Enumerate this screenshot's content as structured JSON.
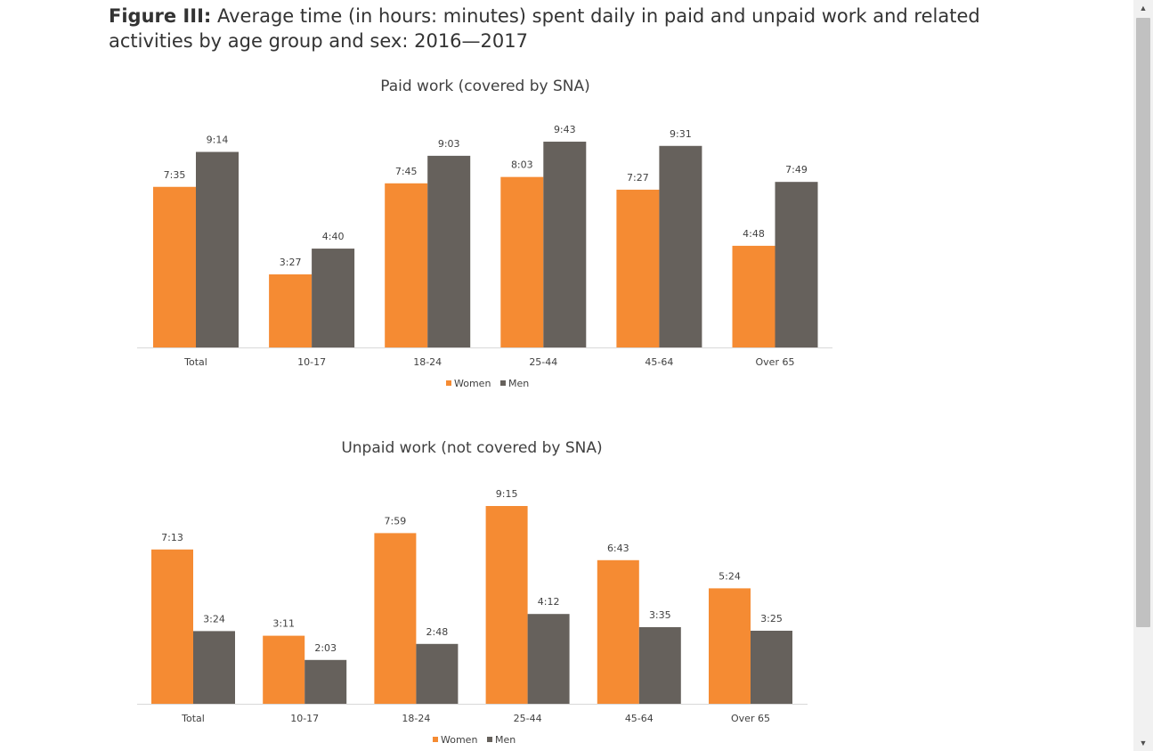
{
  "caption": {
    "label": "Figure III:",
    "text": " Average time (in hours: minutes) spent daily in paid and unpaid work and related activities by age group and sex: 2016—2017"
  },
  "chart_data": [
    {
      "type": "bar",
      "title": "Paid work (covered by SNA)",
      "categories": [
        "Total",
        "10-17",
        "18-24",
        "25-44",
        "45-64",
        "Over 65"
      ],
      "series": [
        {
          "name": "Women",
          "color": "#f58b33",
          "values": [
            7.583,
            3.45,
            7.75,
            8.05,
            7.45,
            4.8
          ],
          "labels": [
            "7:35",
            "3:27",
            "7:45",
            "8:03",
            "7:27",
            "4:48"
          ]
        },
        {
          "name": "Men",
          "color": "#66615c",
          "values": [
            9.233,
            4.667,
            9.05,
            9.717,
            9.517,
            7.817
          ],
          "labels": [
            "9:14",
            "4:40",
            "9:03",
            "9:43",
            "9:31",
            "7:49"
          ]
        }
      ],
      "ylim": [
        0,
        10
      ],
      "legend": "bottom"
    },
    {
      "type": "bar",
      "title": "Unpaid work (not covered by SNA)",
      "categories": [
        "Total",
        "10-17",
        "18-24",
        "25-44",
        "45-64",
        "Over 65"
      ],
      "series": [
        {
          "name": "Women",
          "color": "#f58b33",
          "values": [
            7.217,
            3.183,
            7.983,
            9.25,
            6.717,
            5.4
          ],
          "labels": [
            "7:13",
            "3:11",
            "7:59",
            "9:15",
            "6:43",
            "5:24"
          ]
        },
        {
          "name": "Men",
          "color": "#66615c",
          "values": [
            3.4,
            2.05,
            2.8,
            4.2,
            3.583,
            3.417
          ],
          "labels": [
            "3:24",
            "2:03",
            "2:48",
            "4:12",
            "3:35",
            "3:25"
          ]
        }
      ],
      "ylim": [
        0,
        10
      ],
      "legend": "bottom"
    }
  ],
  "scrollbar": {
    "up_icon": "triangle-up-icon",
    "down_icon": "triangle-down-icon"
  }
}
